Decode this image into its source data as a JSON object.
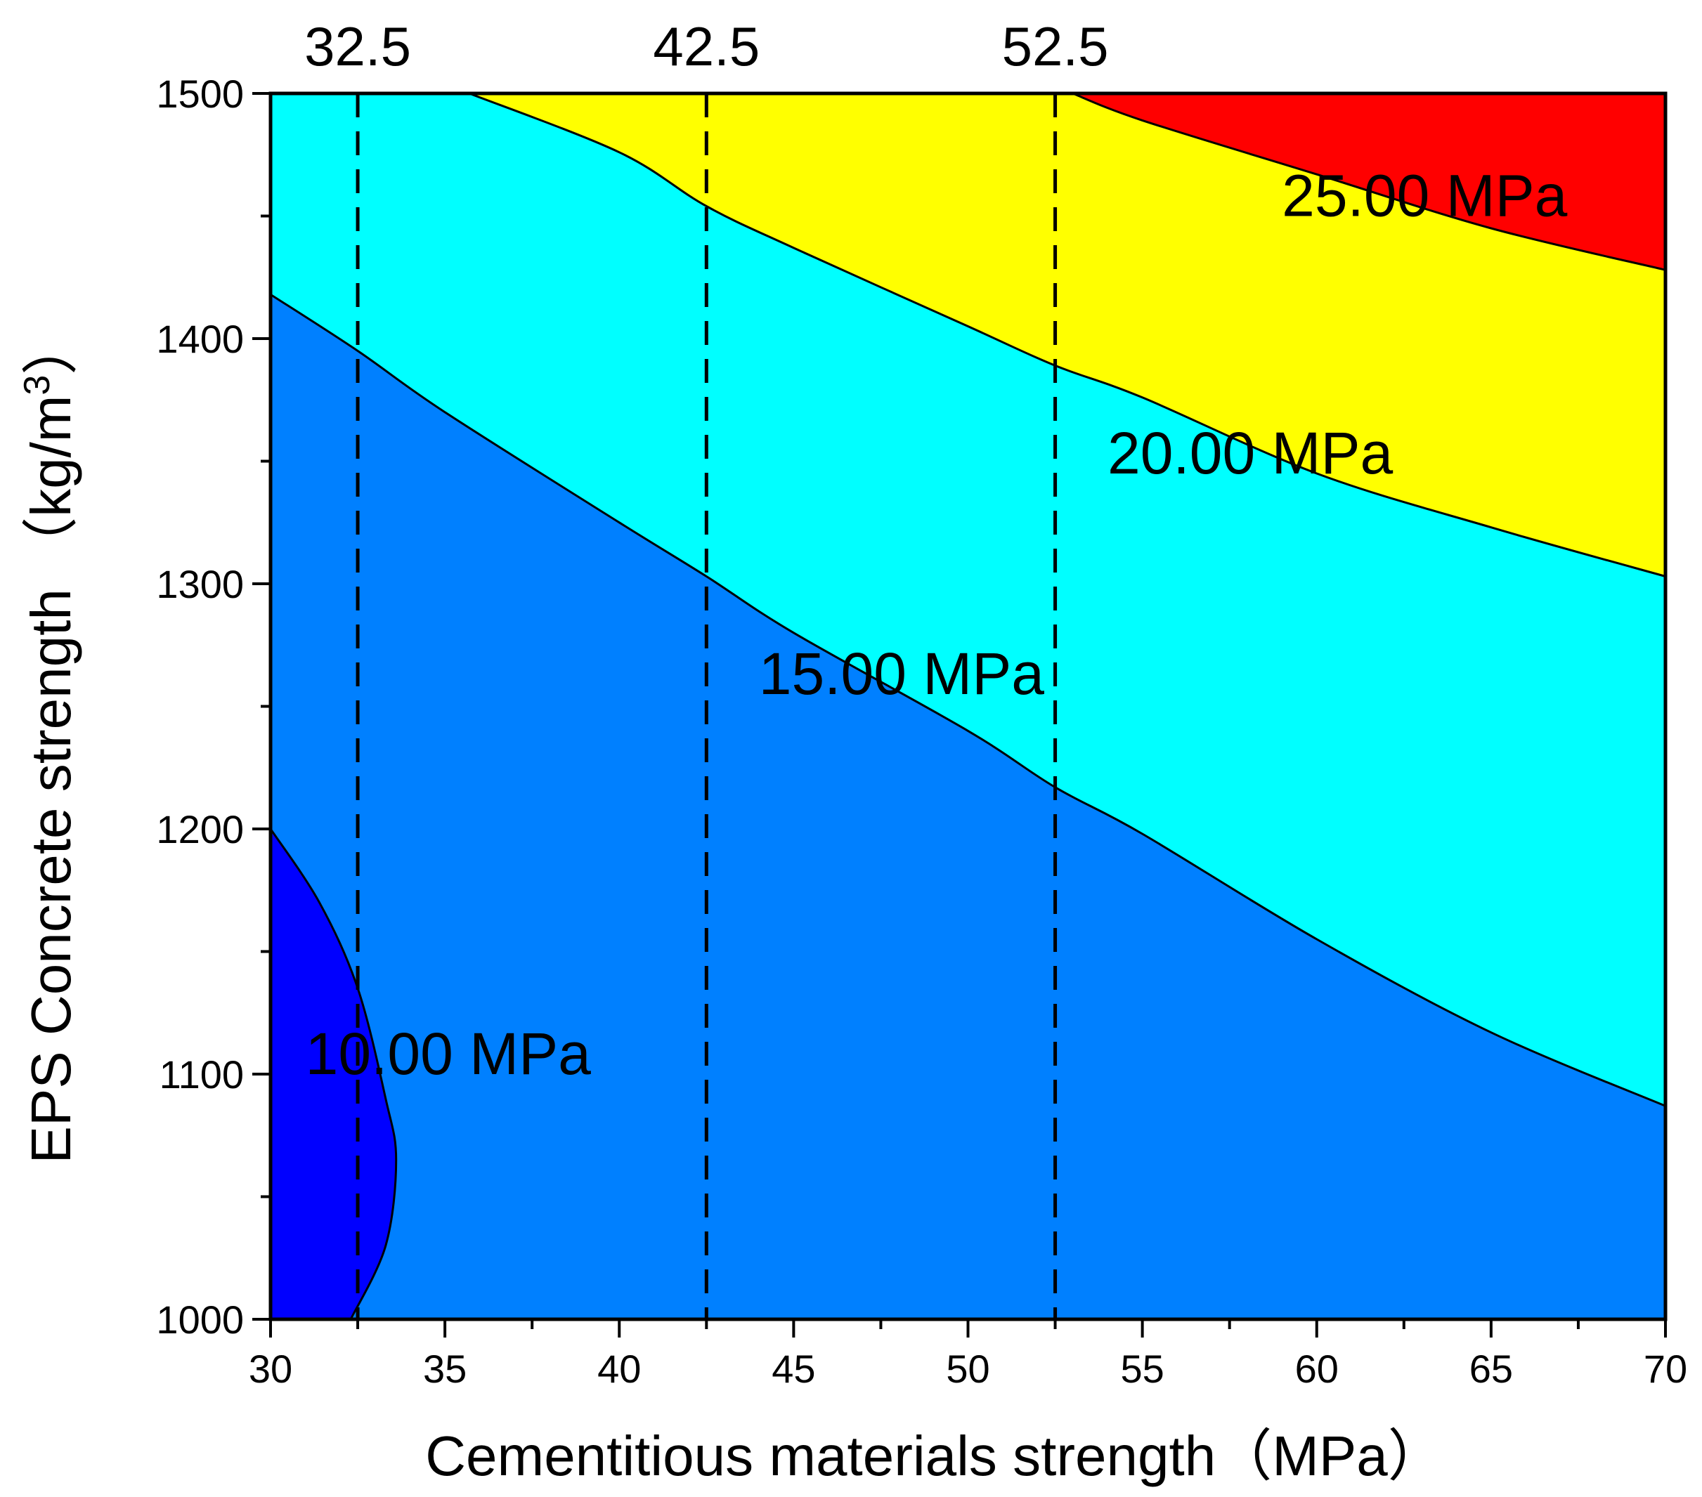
{
  "chart_data": {
    "type": "contour",
    "xlabel": "Cementitious materials  strength（MPa）",
    "ylabel": "EPS Concrete strength （kg/m",
    "ylabel_superscript": "3",
    "ylabel_suffix": "）",
    "xlim": [
      30,
      70
    ],
    "ylim": [
      1000,
      1500
    ],
    "x_ticks": [
      30,
      35,
      40,
      45,
      50,
      55,
      60,
      65,
      70
    ],
    "y_ticks": [
      1000,
      1100,
      1200,
      1300,
      1400,
      1500
    ],
    "grade_lines": [
      {
        "x": 32.5,
        "label": "32.5"
      },
      {
        "x": 42.5,
        "label": "42.5"
      },
      {
        "x": 52.5,
        "label": "52.5"
      }
    ],
    "colors": {
      "below_10": "#0000ff",
      "from_10_to_15": "#0080ff",
      "from_15_to_20": "#00ffff",
      "from_20_to_25": "#ffff00",
      "above_25": "#ff0000"
    },
    "contour_lines": [
      {
        "level": 10,
        "label": "10.00 MPa",
        "label_at": [
          31.0,
          1100
        ],
        "points": [
          [
            30,
            1200
          ],
          [
            31.4,
            1170
          ],
          [
            32.5,
            1135
          ],
          [
            33.3,
            1090
          ],
          [
            33.6,
            1065
          ],
          [
            33.3,
            1030
          ],
          [
            32.3,
            1000
          ]
        ]
      },
      {
        "level": 15,
        "label": "15.00 MPa",
        "label_at": [
          44.0,
          1255
        ],
        "points": [
          [
            30,
            1418
          ],
          [
            32.5,
            1395
          ],
          [
            35,
            1370
          ],
          [
            40,
            1325
          ],
          [
            42.5,
            1303
          ],
          [
            45,
            1280
          ],
          [
            50,
            1240
          ],
          [
            52.5,
            1217
          ],
          [
            55,
            1198
          ],
          [
            60,
            1155
          ],
          [
            65,
            1117
          ],
          [
            70,
            1087
          ]
        ]
      },
      {
        "level": 20,
        "label": "20.00 MPa",
        "label_at": [
          54.0,
          1345
        ],
        "points": [
          [
            35.7,
            1500
          ],
          [
            40,
            1476
          ],
          [
            42.5,
            1454
          ],
          [
            45,
            1437
          ],
          [
            50,
            1405
          ],
          [
            52.5,
            1389
          ],
          [
            55,
            1376
          ],
          [
            60,
            1345
          ],
          [
            65,
            1323
          ],
          [
            70,
            1303
          ]
        ]
      },
      {
        "level": 25,
        "label": "25.00 MPa",
        "label_at": [
          59.0,
          1450
        ],
        "points": [
          [
            53.0,
            1500
          ],
          [
            55,
            1489
          ],
          [
            60,
            1467
          ],
          [
            65,
            1445
          ],
          [
            70,
            1428
          ]
        ]
      }
    ]
  }
}
